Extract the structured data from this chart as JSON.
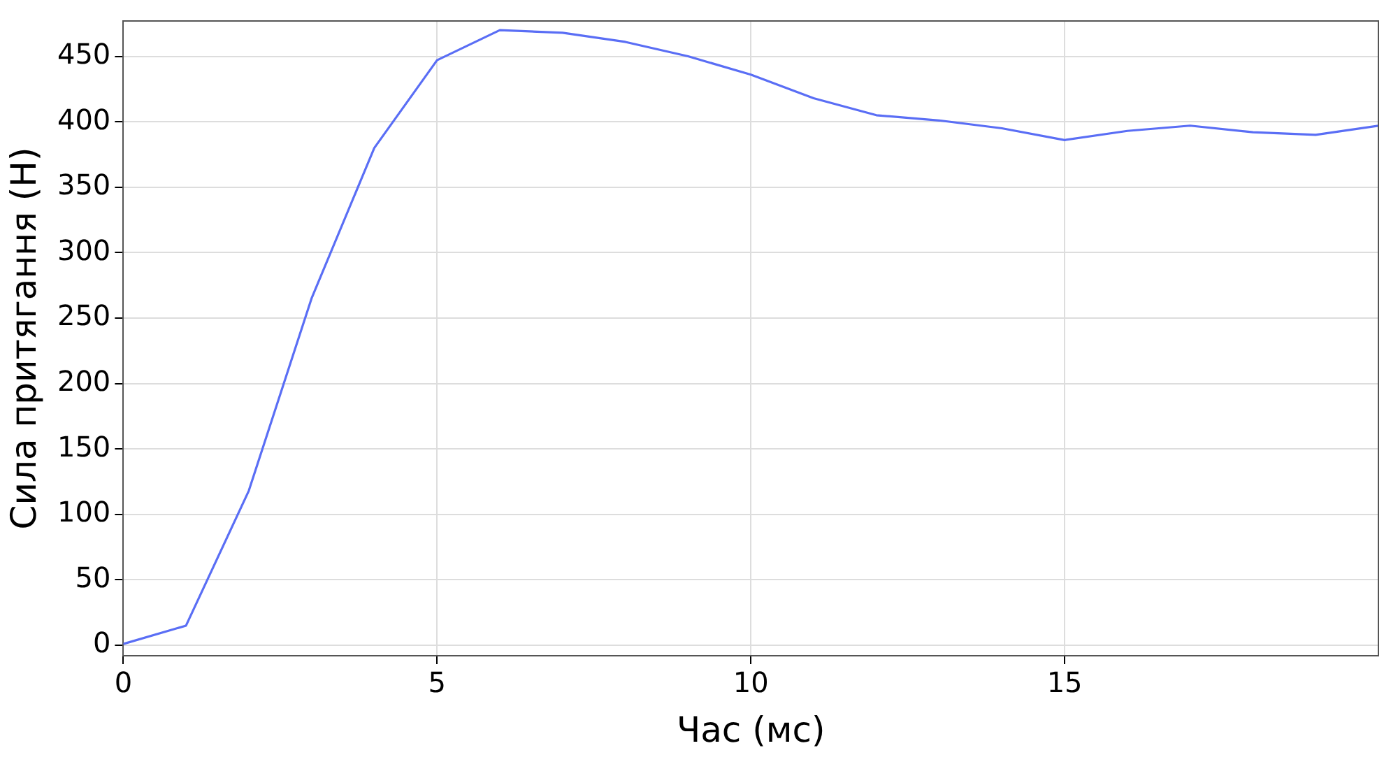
{
  "chart_data": {
    "type": "line",
    "xlabel": "Час (мс)",
    "ylabel": "Сила притягання (Н)",
    "x": [
      0,
      1,
      2,
      3,
      4,
      5,
      6,
      7,
      8,
      9,
      10,
      11,
      12,
      13,
      14,
      15,
      16,
      17,
      18,
      19,
      20
    ],
    "series": [
      {
        "color": "#5a6ef5",
        "values": [
          1,
          15,
          118,
          265,
          380,
          447,
          470,
          468,
          461,
          450,
          436,
          418,
          405,
          401,
          395,
          386,
          393,
          397,
          392,
          390,
          397
        ]
      }
    ],
    "xlim": [
      0,
      20
    ],
    "xticks": [
      0,
      5,
      10,
      15
    ],
    "ylim": [
      -8,
      477
    ],
    "yticks": [
      0,
      50,
      100,
      150,
      200,
      250,
      300,
      350,
      400,
      450
    ],
    "grid": true,
    "legend": false,
    "marker": "none",
    "line_style": "solid"
  }
}
